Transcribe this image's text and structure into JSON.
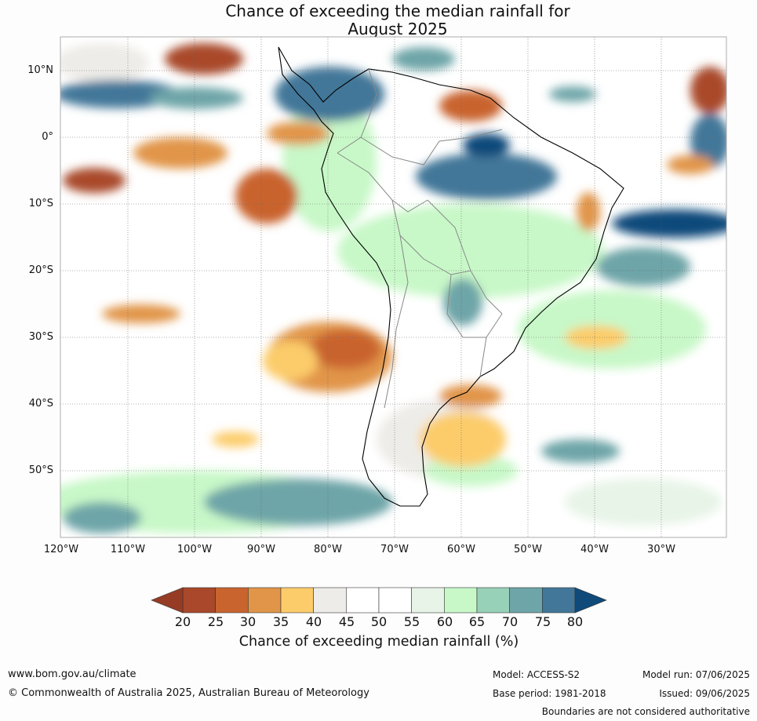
{
  "title_line1": "Chance of exceeding the median rainfall for",
  "title_line2": "August 2025",
  "lat_labels": [
    "10°N",
    "0°",
    "10°S",
    "20°S",
    "30°S",
    "40°S",
    "50°S"
  ],
  "lon_labels": [
    "120°W",
    "110°W",
    "100°W",
    "90°W",
    "80°W",
    "70°W",
    "60°W",
    "50°W",
    "40°W",
    "30°W"
  ],
  "colorbar": {
    "ticks": [
      "20",
      "25",
      "30",
      "35",
      "40",
      "45",
      "50",
      "55",
      "60",
      "65",
      "70",
      "75",
      "80"
    ],
    "colors": [
      "#a9482a",
      "#c9642f",
      "#e19548",
      "#fccc6b",
      "#eeece8",
      "#ffffff",
      "#ffffff",
      "#e8f4e8",
      "#c8f8c8",
      "#97d1b8",
      "#6ea5a8",
      "#437799"
    ],
    "under_color": "#963c25",
    "over_color": "#0f4a7a",
    "label": "Chance of exceeding median rainfall (%)"
  },
  "footer": {
    "url": "www.bom.gov.au/climate",
    "copyright": "© Commonwealth of Australia 2025, Australian Bureau of Meteorology",
    "model": "Model: ACCESS-S2",
    "base_period": "Base period: 1981-2018",
    "model_run": "Model run: 07/06/2025",
    "issued": "Issued: 09/06/2025",
    "disclaimer": "Boundaries are not considered authoritative"
  }
}
